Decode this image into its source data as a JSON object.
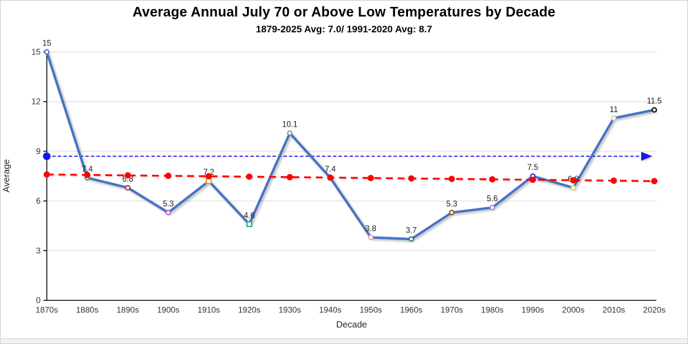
{
  "window": {
    "bg": "#FFFFFF",
    "border_color": "#D2D2D2",
    "bottom_strip_color": "#F2F2F2"
  },
  "chart_data": {
    "type": "line",
    "title": "Average Annual July 70 or Above Low Temperatures by Decade",
    "subtitle": "1879-2025 Avg: 7.0/ 1991-2020 Avg: 8.7",
    "xlabel": "Decade",
    "ylabel": "Average",
    "ylim": [
      0,
      15
    ],
    "yticks": [
      0,
      3,
      6,
      9,
      12,
      15
    ],
    "grid": true,
    "legend": "none",
    "gridline_color": "#DCDCDC",
    "axis_color": "#000000",
    "categories": [
      "1870s",
      "1880s",
      "1890s",
      "1900s",
      "1910s",
      "1920s",
      "1930s",
      "1940s",
      "1950s",
      "1960s",
      "1970s",
      "1980s",
      "1990s",
      "2000s",
      "2010s",
      "2020s"
    ],
    "series": [
      {
        "name": "decade-average",
        "kind": "line-with-markers",
        "color": "#4472C4",
        "line_width": 3.5,
        "values": [
          15,
          7.4,
          6.8,
          5.3,
          7.2,
          4.6,
          10.1,
          7.4,
          3.8,
          3.7,
          5.3,
          5.6,
          7.5,
          6.8,
          11,
          11.5
        ],
        "data_labels": [
          "15",
          "7.4",
          "6.8",
          "5.3",
          "7.2",
          "4.6",
          "10.1",
          "7.4",
          "3.8",
          "3.7",
          "5.3",
          "5.6",
          "7.5",
          "6.8",
          "11",
          "11.5"
        ],
        "markers": [
          {
            "shape": "circle",
            "color": "#4472C4"
          },
          {
            "shape": "circle",
            "color": "#33A02C"
          },
          {
            "shape": "circle",
            "color": "#A83232"
          },
          {
            "shape": "circle",
            "color": "#C45AC8"
          },
          {
            "shape": "square",
            "color": "#E8921E"
          },
          {
            "shape": "square",
            "color": "#18A898"
          },
          {
            "shape": "circle",
            "color": "#909090"
          },
          {
            "shape": "circle",
            "color": "#C00000"
          },
          {
            "shape": "circle",
            "color": "#F0A0B0"
          },
          {
            "shape": "circle",
            "color": "#20785F"
          },
          {
            "shape": "circle",
            "color": "#8B4A20"
          },
          {
            "shape": "circle",
            "color": "#9090E0"
          },
          {
            "shape": "circle",
            "color": "#2020DD"
          },
          {
            "shape": "circle",
            "color": "#E0D44A"
          },
          {
            "shape": "circle",
            "color": "#C8C8C8"
          },
          {
            "shape": "circle",
            "color": "#000000"
          }
        ]
      },
      {
        "name": "trend-1879-2025",
        "kind": "dashed-trend-with-dots",
        "color": "#FF0000",
        "start_value": 7.6,
        "end_value": 7.2,
        "dot_at_each_category": true
      },
      {
        "name": "avg-1991-2020-reference",
        "kind": "dashed-reference-arrow",
        "color": "#1414EE",
        "value": 8.7,
        "start_dot": true,
        "end_arrow": true
      }
    ]
  }
}
